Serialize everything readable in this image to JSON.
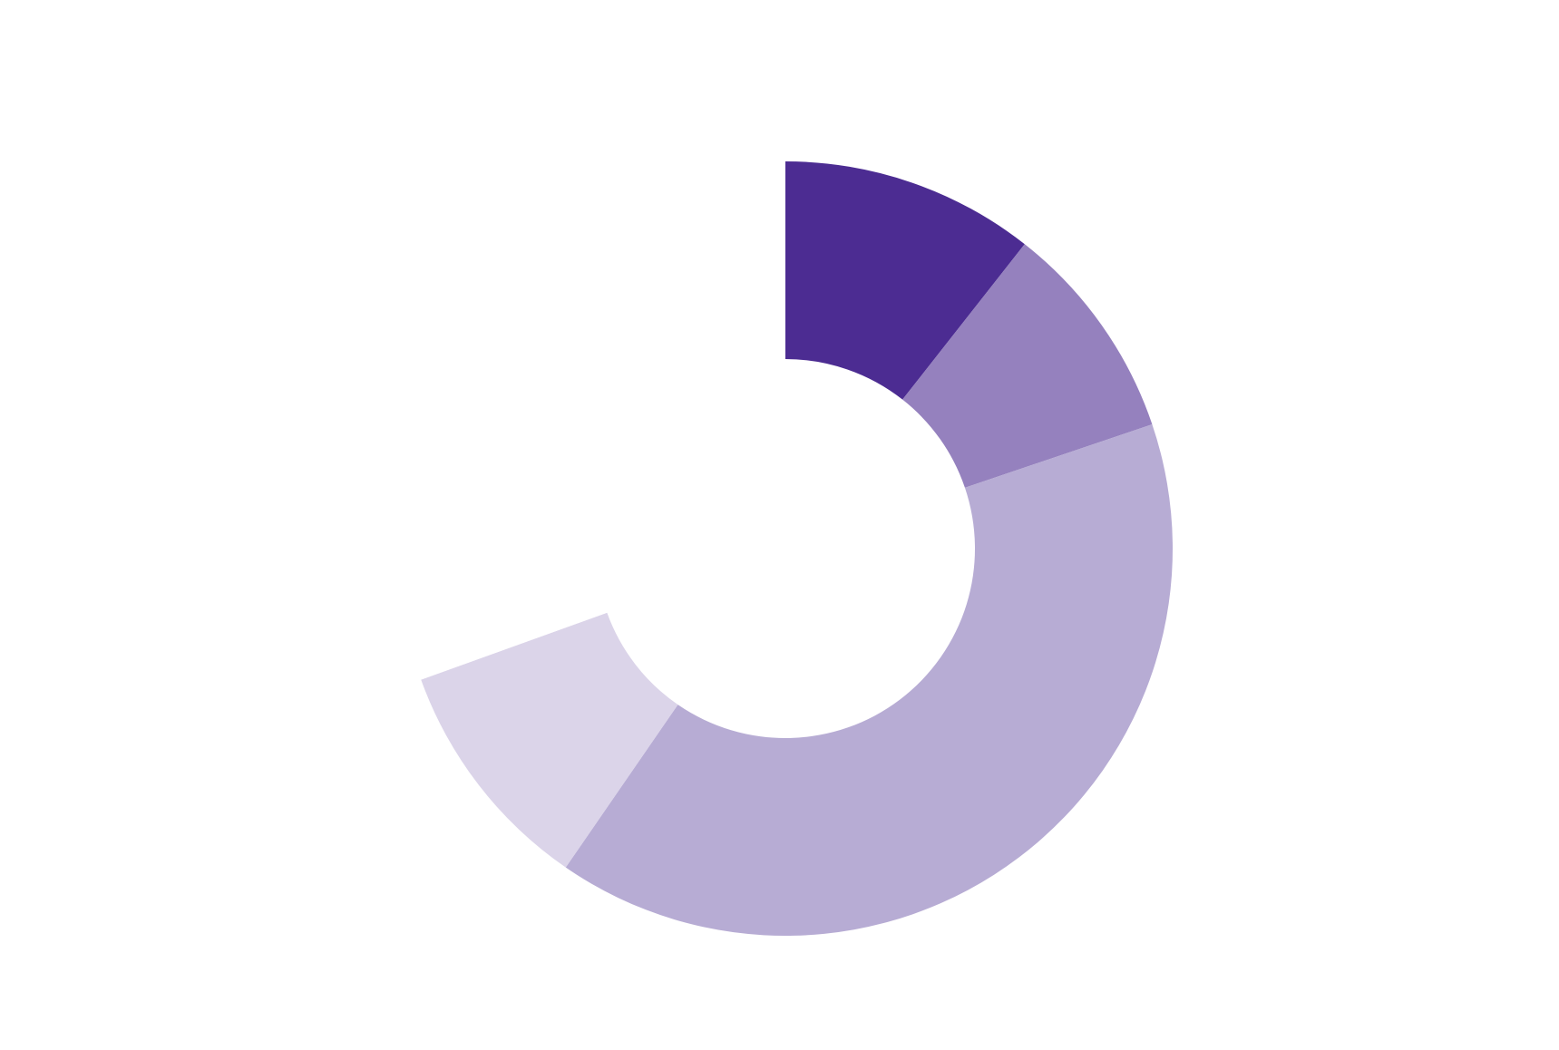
{
  "chart_data": {
    "type": "donut",
    "values": [
      10.6,
      9.2,
      39.8,
      9.9,
      30.5
    ],
    "colors": [
      "#4c2c92",
      "#9581be",
      "#b7acd4",
      "#dbd4e9",
      "#ffffff"
    ]
  }
}
